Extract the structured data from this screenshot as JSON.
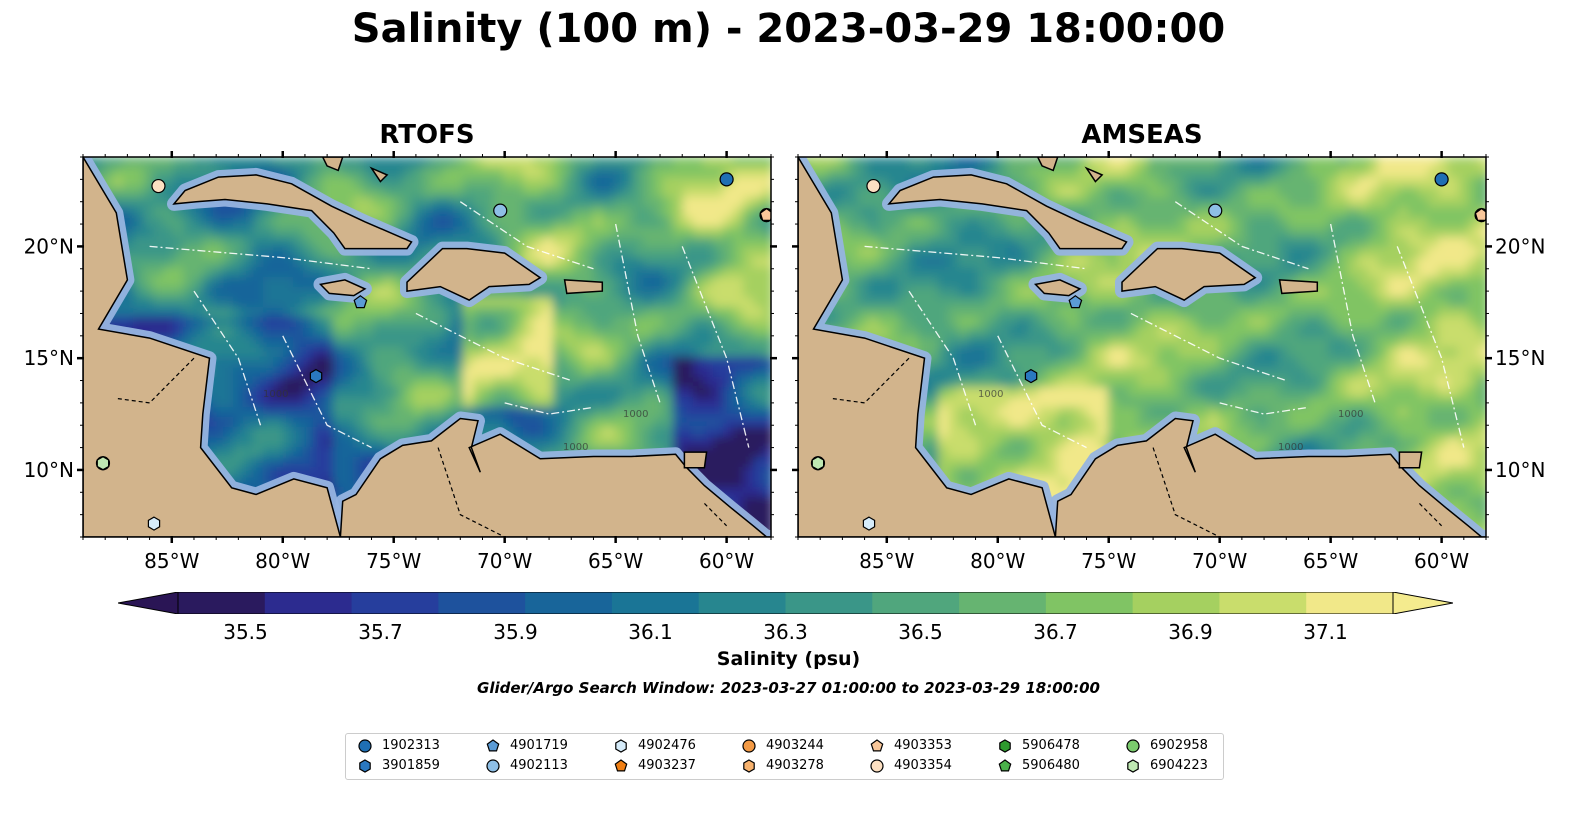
{
  "title": "Salinity (100 m) - 2023-03-29 18:00:00",
  "panels": [
    {
      "title": "RTOFS",
      "model": "rtofs"
    },
    {
      "title": "AMSEAS",
      "model": "amseas"
    }
  ],
  "map": {
    "lon_range": [
      -89,
      -58
    ],
    "lat_range": [
      7,
      24
    ],
    "lon_ticks": [
      {
        "value": -85,
        "label": "85°W"
      },
      {
        "value": -80,
        "label": "80°W"
      },
      {
        "value": -75,
        "label": "75°W"
      },
      {
        "value": -70,
        "label": "70°W"
      },
      {
        "value": -65,
        "label": "65°W"
      },
      {
        "value": -60,
        "label": "60°W"
      }
    ],
    "lat_ticks": [
      {
        "value": 10,
        "label": "10°N"
      },
      {
        "value": 15,
        "label": "15°N"
      },
      {
        "value": 20,
        "label": "20°N"
      }
    ],
    "land_color": "#d2b48c",
    "shelf_color": "#96b4e0",
    "contour_labels": [
      "1000",
      "1000",
      "1000"
    ]
  },
  "colorbar": {
    "label": "Salinity (psu)",
    "min": 35.4,
    "max": 37.2,
    "extend": "both",
    "ticks": [
      "35.5",
      "35.7",
      "35.9",
      "36.1",
      "36.3",
      "36.5",
      "36.7",
      "36.9",
      "37.1"
    ],
    "colors": [
      "#2a1a5e",
      "#2c2b8f",
      "#263e9d",
      "#1e529d",
      "#18659a",
      "#1a7596",
      "#27868f",
      "#3a9688",
      "#50a67d",
      "#66b471",
      "#80c464",
      "#a5d060",
      "#c9dd6c",
      "#f1e889"
    ],
    "min_extend_color": "#2a1555",
    "max_extend_color": "#f4eb8e"
  },
  "search_window": "Glider/Argo Search Window: 2023-03-27 01:00:00 to 2023-03-29 18:00:00",
  "floats": [
    {
      "id": "1902313",
      "marker": "circle",
      "color": "#1f6fb4",
      "lon": -60.0,
      "lat": 23.0
    },
    {
      "id": "3901859",
      "marker": "hexagon",
      "color": "#2a78c0",
      "lon": -78.5,
      "lat": 14.2
    },
    {
      "id": "4901719",
      "marker": "pentagon",
      "color": "#5b9bd5",
      "lon": -76.5,
      "lat": 17.5
    },
    {
      "id": "4902113",
      "marker": "circle",
      "color": "#8ebfe6",
      "lon": -70.2,
      "lat": 21.6
    },
    {
      "id": "4902476",
      "marker": "hexagon",
      "color": "#d6ecfa",
      "lon": -85.8,
      "lat": 7.6
    },
    {
      "id": "4903237",
      "marker": "pentagon",
      "color": "#f07f14",
      "lon": -58.2,
      "lat": 21.4
    },
    {
      "id": "4903244",
      "marker": "circle",
      "color": "#f39a45",
      "lon": -58.2,
      "lat": 21.4
    },
    {
      "id": "4903278",
      "marker": "hexagon",
      "color": "#f7b26e",
      "lon": -58.2,
      "lat": 21.4
    },
    {
      "id": "4903353",
      "marker": "pentagon",
      "color": "#f9c79a",
      "lon": -58.2,
      "lat": 21.4
    },
    {
      "id": "4903354",
      "marker": "circle",
      "color": "#fde0c2",
      "lon": -85.6,
      "lat": 22.7
    },
    {
      "id": "5906478",
      "marker": "hexagon",
      "color": "#2e9a2e",
      "lon": -88.1,
      "lat": 10.3
    },
    {
      "id": "5906480",
      "marker": "pentagon",
      "color": "#4ab04a",
      "lon": -88.1,
      "lat": 10.3
    },
    {
      "id": "6902958",
      "marker": "circle",
      "color": "#7bcc6d",
      "lon": -88.1,
      "lat": 10.3
    },
    {
      "id": "6904223",
      "marker": "hexagon",
      "color": "#bfe8b2",
      "lon": -88.1,
      "lat": 10.3
    }
  ]
}
